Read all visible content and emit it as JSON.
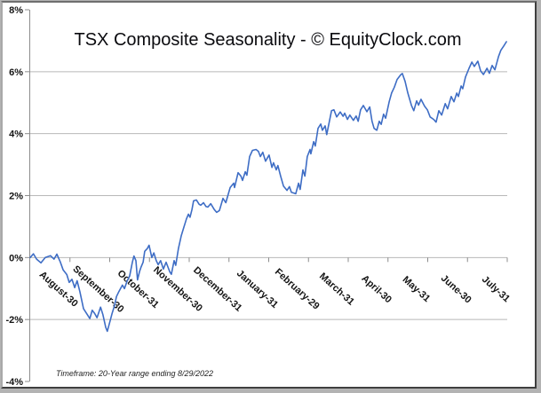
{
  "chart_data": {
    "type": "line",
    "title": "TSX Composite Seasonality - © EquityClock.com",
    "footnote": "Timeframe: 20-Year range ending 8/29/2022",
    "legend": "none",
    "grid": "horizontal",
    "ylim": [
      -4,
      8
    ],
    "x_range_months": [
      0,
      12
    ],
    "y_tick_values": [
      8,
      6,
      4,
      2,
      0,
      -2,
      -4
    ],
    "y_tick_labels": [
      "8%",
      "6%",
      "4%",
      "2%",
      "0%",
      "-2%",
      "-4%"
    ],
    "gridline_values": [
      6,
      4,
      2,
      0,
      -2
    ],
    "x_axis_at": 0,
    "x_tick_labels": [
      "August-30",
      "September-30",
      "October-31",
      "November-30",
      "December-31",
      "January-31",
      "February-29",
      "March-31",
      "April-30",
      "May-31",
      "June-30",
      "July-31"
    ],
    "colors": {
      "line": "#3e6dc5",
      "grid": "#b8b8b8",
      "axis": "#8c8c8c",
      "labels": "#141414",
      "plot_background": "#ffffff"
    },
    "series": [
      {
        "name": "TSX Composite Seasonality",
        "units": "percent cumulative gain",
        "points": [
          [
            0.0,
            0.0
          ],
          [
            0.08,
            0.12
          ],
          [
            0.16,
            -0.05
          ],
          [
            0.27,
            -0.17
          ],
          [
            0.38,
            0.0
          ],
          [
            0.51,
            0.06
          ],
          [
            0.6,
            -0.05
          ],
          [
            0.67,
            0.11
          ],
          [
            0.76,
            -0.15
          ],
          [
            0.83,
            -0.4
          ],
          [
            0.92,
            -0.55
          ],
          [
            0.98,
            -0.8
          ],
          [
            1.05,
            -0.7
          ],
          [
            1.12,
            -0.97
          ],
          [
            1.18,
            -0.75
          ],
          [
            1.25,
            -1.1
          ],
          [
            1.34,
            -1.65
          ],
          [
            1.43,
            -1.83
          ],
          [
            1.5,
            -1.97
          ],
          [
            1.56,
            -1.7
          ],
          [
            1.62,
            -1.8
          ],
          [
            1.68,
            -1.94
          ],
          [
            1.77,
            -1.6
          ],
          [
            1.83,
            -1.85
          ],
          [
            1.9,
            -2.25
          ],
          [
            1.94,
            -2.38
          ],
          [
            2.01,
            -2.05
          ],
          [
            2.06,
            -1.8
          ],
          [
            2.12,
            -1.55
          ],
          [
            2.17,
            -1.26
          ],
          [
            2.23,
            -1.1
          ],
          [
            2.32,
            -0.89
          ],
          [
            2.37,
            -1.0
          ],
          [
            2.44,
            -0.75
          ],
          [
            2.5,
            -0.6
          ],
          [
            2.57,
            -0.15
          ],
          [
            2.61,
            0.05
          ],
          [
            2.66,
            -0.1
          ],
          [
            2.7,
            -0.72
          ],
          [
            2.75,
            -0.45
          ],
          [
            2.79,
            -0.3
          ],
          [
            2.84,
            -0.15
          ],
          [
            2.88,
            0.2
          ],
          [
            2.95,
            0.3
          ],
          [
            2.99,
            0.4
          ],
          [
            3.06,
            0.0
          ],
          [
            3.11,
            0.15
          ],
          [
            3.17,
            -0.1
          ],
          [
            3.22,
            -0.23
          ],
          [
            3.28,
            -0.1
          ],
          [
            3.35,
            -0.37
          ],
          [
            3.42,
            -0.15
          ],
          [
            3.51,
            -0.46
          ],
          [
            3.55,
            -0.54
          ],
          [
            3.62,
            -0.1
          ],
          [
            3.66,
            -0.25
          ],
          [
            3.73,
            0.3
          ],
          [
            3.8,
            0.7
          ],
          [
            3.87,
            1.0
          ],
          [
            3.93,
            1.25
          ],
          [
            3.98,
            1.4
          ],
          [
            4.02,
            1.3
          ],
          [
            4.07,
            1.55
          ],
          [
            4.11,
            1.83
          ],
          [
            4.18,
            1.86
          ],
          [
            4.25,
            1.72
          ],
          [
            4.29,
            1.69
          ],
          [
            4.36,
            1.77
          ],
          [
            4.42,
            1.65
          ],
          [
            4.47,
            1.63
          ],
          [
            4.54,
            1.74
          ],
          [
            4.63,
            1.55
          ],
          [
            4.69,
            1.46
          ],
          [
            4.76,
            1.52
          ],
          [
            4.85,
            1.91
          ],
          [
            4.92,
            1.77
          ],
          [
            5.03,
            2.26
          ],
          [
            5.12,
            2.4
          ],
          [
            5.14,
            2.26
          ],
          [
            5.23,
            2.74
          ],
          [
            5.3,
            2.63
          ],
          [
            5.34,
            2.49
          ],
          [
            5.41,
            2.77
          ],
          [
            5.45,
            2.66
          ],
          [
            5.52,
            3.26
          ],
          [
            5.59,
            3.46
          ],
          [
            5.68,
            3.49
          ],
          [
            5.74,
            3.43
          ],
          [
            5.79,
            3.26
          ],
          [
            5.85,
            3.4
          ],
          [
            5.92,
            3.11
          ],
          [
            6.01,
            3.31
          ],
          [
            6.08,
            2.91
          ],
          [
            6.12,
            3.06
          ],
          [
            6.19,
            2.83
          ],
          [
            6.23,
            2.97
          ],
          [
            6.3,
            2.63
          ],
          [
            6.37,
            2.31
          ],
          [
            6.46,
            2.17
          ],
          [
            6.52,
            2.29
          ],
          [
            6.57,
            2.11
          ],
          [
            6.64,
            2.08
          ],
          [
            6.68,
            2.06
          ],
          [
            6.75,
            2.4
          ],
          [
            6.79,
            2.2
          ],
          [
            6.86,
            2.83
          ],
          [
            6.91,
            2.63
          ],
          [
            6.97,
            3.26
          ],
          [
            7.04,
            3.49
          ],
          [
            7.06,
            3.35
          ],
          [
            7.13,
            3.74
          ],
          [
            7.17,
            3.6
          ],
          [
            7.24,
            4.17
          ],
          [
            7.31,
            4.31
          ],
          [
            7.35,
            4.11
          ],
          [
            7.42,
            4.25
          ],
          [
            7.46,
            3.97
          ],
          [
            7.58,
            4.74
          ],
          [
            7.64,
            4.77
          ],
          [
            7.71,
            4.54
          ],
          [
            7.8,
            4.7
          ],
          [
            7.87,
            4.56
          ],
          [
            7.91,
            4.66
          ],
          [
            7.98,
            4.46
          ],
          [
            8.04,
            4.6
          ],
          [
            8.13,
            4.43
          ],
          [
            8.2,
            4.57
          ],
          [
            8.25,
            4.4
          ],
          [
            8.31,
            4.77
          ],
          [
            8.38,
            4.91
          ],
          [
            8.47,
            4.71
          ],
          [
            8.54,
            4.86
          ],
          [
            8.6,
            4.4
          ],
          [
            8.65,
            4.17
          ],
          [
            8.72,
            4.11
          ],
          [
            8.78,
            4.4
          ],
          [
            8.83,
            4.3
          ],
          [
            8.89,
            4.63
          ],
          [
            8.94,
            4.5
          ],
          [
            9.03,
            5.03
          ],
          [
            9.09,
            5.31
          ],
          [
            9.16,
            5.5
          ],
          [
            9.23,
            5.75
          ],
          [
            9.32,
            5.9
          ],
          [
            9.36,
            5.94
          ],
          [
            9.43,
            5.69
          ],
          [
            9.5,
            5.31
          ],
          [
            9.59,
            4.91
          ],
          [
            9.65,
            4.74
          ],
          [
            9.72,
            5.06
          ],
          [
            9.77,
            4.92
          ],
          [
            9.83,
            5.11
          ],
          [
            9.92,
            4.89
          ],
          [
            9.99,
            4.77
          ],
          [
            10.06,
            4.54
          ],
          [
            10.15,
            4.46
          ],
          [
            10.21,
            4.37
          ],
          [
            10.28,
            4.74
          ],
          [
            10.35,
            4.6
          ],
          [
            10.44,
            4.97
          ],
          [
            10.5,
            4.8
          ],
          [
            10.59,
            5.2
          ],
          [
            10.66,
            5.03
          ],
          [
            10.73,
            5.31
          ],
          [
            10.77,
            5.2
          ],
          [
            10.84,
            5.54
          ],
          [
            10.88,
            5.45
          ],
          [
            10.95,
            5.83
          ],
          [
            11.04,
            6.11
          ],
          [
            11.11,
            6.31
          ],
          [
            11.17,
            6.17
          ],
          [
            11.26,
            6.34
          ],
          [
            11.33,
            6.03
          ],
          [
            11.4,
            5.91
          ],
          [
            11.49,
            6.11
          ],
          [
            11.55,
            5.95
          ],
          [
            11.62,
            6.2
          ],
          [
            11.69,
            6.06
          ],
          [
            11.78,
            6.49
          ],
          [
            11.84,
            6.69
          ],
          [
            11.91,
            6.83
          ],
          [
            11.98,
            6.97
          ]
        ]
      }
    ]
  }
}
